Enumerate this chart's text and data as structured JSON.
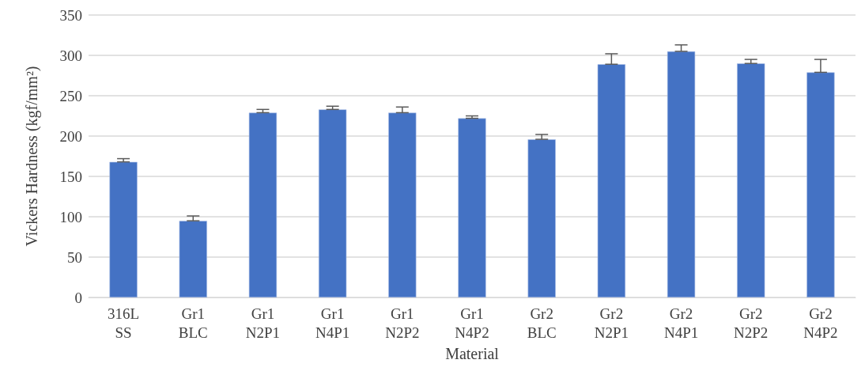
{
  "chart_data": {
    "type": "bar",
    "xlabel": "Material",
    "ylabel": "Vickers Hardness (kgf/mm²)",
    "categories": [
      "316L\nSS",
      "Gr1\nBLC",
      "Gr1\nN2P1",
      "Gr1\nN4P1",
      "Gr1\nN2P2",
      "Gr1\nN4P2",
      "Gr2\nBLC",
      "Gr2\nN2P1",
      "Gr2\nN4P1",
      "Gr2\nN2P2",
      "Gr2\nN4P2"
    ],
    "values": [
      168,
      95,
      229,
      233,
      229,
      222,
      196,
      289,
      305,
      290,
      279
    ],
    "errors": [
      [
        168,
        172
      ],
      [
        95,
        101
      ],
      [
        229,
        233
      ],
      [
        233,
        237
      ],
      [
        229,
        236
      ],
      [
        222,
        225
      ],
      [
        196,
        202
      ],
      [
        289,
        302
      ],
      [
        305,
        313
      ],
      [
        290,
        295
      ],
      [
        279,
        295
      ]
    ],
    "color": "#4472c4",
    "ylim": [
      0,
      350
    ],
    "yticks": [
      0,
      50,
      100,
      150,
      200,
      250,
      300,
      350
    ],
    "grid": "y"
  }
}
